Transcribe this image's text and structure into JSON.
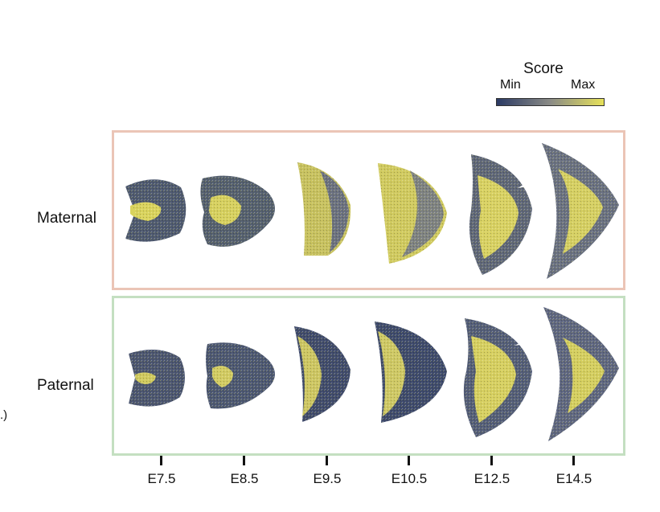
{
  "legend": {
    "title": "Score",
    "min_label": "Min",
    "max_label": "Max",
    "low_color": "#2b3a64",
    "mid_color": "#8a8b86",
    "high_color": "#e6e15a"
  },
  "rows": [
    {
      "label": "Maternal",
      "border_color": "#ebc5b6"
    },
    {
      "label": "Paternal",
      "border_color": "#c4dfc1"
    }
  ],
  "stages": [
    "E7.5",
    "E8.5",
    "E9.5",
    "E10.5",
    "E12.5",
    "E14.5"
  ],
  "edge_text": ".)",
  "tissue_colors": {
    "dark": "#3b4868",
    "light": "#d8d263",
    "mix": "#8e8d73"
  }
}
